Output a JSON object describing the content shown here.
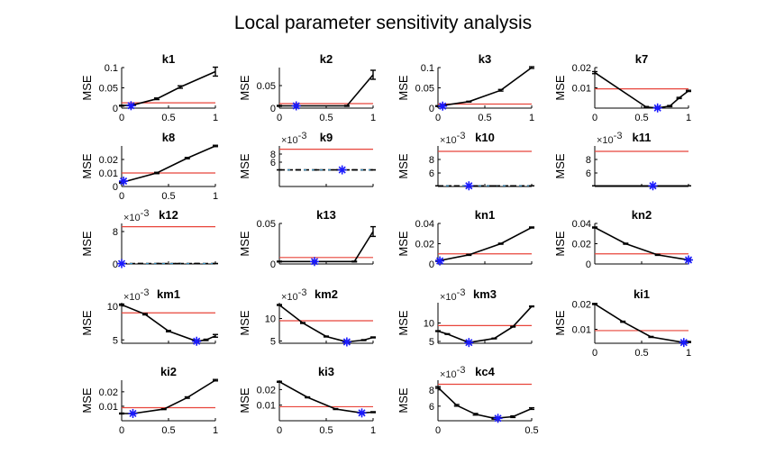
{
  "figure_title": "Local parameter sensitivity analysis",
  "colors": {
    "curve": "#000000",
    "threshold": "#e8443a",
    "optimum": "#1a1aff",
    "axis": "#000000",
    "dashed": "#3aa0d8"
  },
  "chart_data": [
    {
      "type": "line",
      "title": "k1",
      "ylabel": "MSE",
      "xlim": [
        0,
        1
      ],
      "ylim": [
        0,
        0.1
      ],
      "xticks": [
        "0",
        "0.5",
        "1"
      ],
      "yticks": [
        {
          "v": 0,
          "t": "0"
        },
        {
          "v": 0.05,
          "t": "0.05"
        },
        {
          "v": 0.1,
          "t": "0.1"
        }
      ],
      "x": [
        0,
        0.125,
        0.375,
        0.625,
        1
      ],
      "y": [
        0.006,
        0.008,
        0.023,
        0.052,
        0.09
      ],
      "err": [
        0.001,
        0.001,
        0.002,
        0.003,
        0.011
      ],
      "threshold": 0.013,
      "optimum": {
        "x": 0.1,
        "y": 0.006
      }
    },
    {
      "type": "line",
      "title": "k2",
      "ylabel": "MSE",
      "xlim": [
        0,
        1
      ],
      "ylim": [
        0,
        0.09
      ],
      "xticks": [
        "0",
        "0.5",
        "1"
      ],
      "yticks": [
        {
          "v": 0,
          "t": "0"
        },
        {
          "v": 0.05,
          "t": "0.05"
        }
      ],
      "x": [
        0,
        0.18,
        0.72,
        1
      ],
      "y": [
        0.005,
        0.005,
        0.005,
        0.074
      ],
      "err": [
        0.001,
        0.001,
        0.001,
        0.01
      ],
      "threshold": 0.01,
      "optimum": {
        "x": 0.18,
        "y": 0.005
      }
    },
    {
      "type": "line",
      "title": "k3",
      "ylabel": "MSE",
      "xlim": [
        0,
        1
      ],
      "ylim": [
        0,
        0.1
      ],
      "xticks": [
        "0",
        "0.5",
        "1"
      ],
      "yticks": [
        {
          "v": 0,
          "t": "0"
        },
        {
          "v": 0.05,
          "t": "0.05"
        },
        {
          "v": 0.1,
          "t": "0.1"
        }
      ],
      "x": [
        0,
        0.33,
        0.67,
        1
      ],
      "y": [
        0.005,
        0.016,
        0.044,
        0.1
      ],
      "err": [
        0.001,
        0.001,
        0.002,
        0.002
      ],
      "threshold": 0.01,
      "optimum": {
        "x": 0.05,
        "y": 0.005
      }
    },
    {
      "type": "line",
      "title": "k7",
      "ylabel": "MSE",
      "xlim": [
        0,
        1
      ],
      "ylim": [
        0,
        0.02
      ],
      "xticks": [
        "0",
        "0.5",
        "1"
      ],
      "yticks": [
        {
          "v": 0.01,
          "t": "0.01"
        },
        {
          "v": 0.02,
          "t": "0.02"
        }
      ],
      "x": [
        0,
        0.55,
        0.67,
        0.8,
        0.9,
        1
      ],
      "y": [
        0.0175,
        0.0005,
        0.0001,
        0.001,
        0.005,
        0.0085
      ],
      "err": [
        0.0005,
        0.0003,
        0.0003,
        0.0003,
        0.0003,
        0.0003
      ],
      "threshold": 0.0095,
      "optimum": {
        "x": 0.67,
        "y": 0.0001
      }
    },
    {
      "type": "line",
      "title": "k8",
      "ylabel": "MSE",
      "xlim": [
        0,
        1
      ],
      "ylim": [
        0,
        0.03
      ],
      "xticks": [
        "0",
        "0.5",
        "1"
      ],
      "yticks": [
        {
          "v": 0,
          "t": "0"
        },
        {
          "v": 0.01,
          "t": "0.01"
        },
        {
          "v": 0.02,
          "t": "0.02"
        }
      ],
      "x": [
        0,
        0.375,
        0.7,
        1
      ],
      "y": [
        0.003,
        0.01,
        0.021,
        0.03
      ],
      "err": [
        0.0005,
        0.0005,
        0.0005,
        0.0005
      ],
      "threshold": 0.01,
      "optimum": {
        "x": 0.02,
        "y": 0.004
      }
    },
    {
      "type": "line",
      "title": "k9",
      "ylabel": "MSE",
      "multiplier": "×10<tspan dy=\"-5\">-3</tspan>",
      "xlim": [
        0,
        1
      ],
      "ylim": [
        0,
        0.01
      ],
      "xticks": [],
      "yticks": [
        {
          "v": 0.006,
          "t": "6"
        },
        {
          "v": 0.008,
          "t": "8"
        }
      ],
      "x": [
        0,
        0.2,
        0.4,
        0.6,
        0.8,
        1
      ],
      "y": [
        0.0041,
        0.0041,
        0.0041,
        0.0041,
        0.0041,
        0.0041
      ],
      "err": [
        0,
        0,
        0,
        0,
        0,
        0
      ],
      "threshold": 0.0092,
      "dashed": true,
      "optimum": {
        "x": 0.67,
        "y": 0.0041
      },
      "ylim_low": 0.004
    },
    {
      "type": "line",
      "title": "k10",
      "ylabel": "MSE",
      "multiplier": "×10<tspan dy=\"-5\">-3</tspan>",
      "xlim": [
        0,
        1
      ],
      "ylim": [
        0.004,
        0.01
      ],
      "xticks": [],
      "yticks": [
        {
          "v": 0.006,
          "t": "6"
        },
        {
          "v": 0.008,
          "t": "8"
        }
      ],
      "x": [
        0,
        0.2,
        0.4,
        0.6,
        0.8,
        1
      ],
      "y": [
        0.0041,
        0.0041,
        0.0041,
        0.0041,
        0.0041,
        0.0041
      ],
      "err": [
        0,
        0,
        0,
        0,
        0,
        0
      ],
      "threshold": 0.0092,
      "dashed": true,
      "optimum": {
        "x": 0.33,
        "y": 0.0041
      }
    },
    {
      "type": "line",
      "title": "k11",
      "ylabel": "MSE",
      "multiplier": "×10<tspan dy=\"-5\">-3</tspan>",
      "xlim": [
        0,
        1
      ],
      "ylim": [
        0.004,
        0.01
      ],
      "xticks": [],
      "yticks": [
        {
          "v": 0.006,
          "t": "6"
        },
        {
          "v": 0.008,
          "t": "8"
        }
      ],
      "x": [
        0,
        0.2,
        0.4,
        0.6,
        0.8,
        1
      ],
      "y": [
        0.0041,
        0.0041,
        0.0041,
        0.0041,
        0.0041,
        0.0041
      ],
      "err": [
        0,
        0,
        0,
        0,
        0,
        0
      ],
      "threshold": 0.0092,
      "optimum": {
        "x": 0.62,
        "y": 0.0041
      }
    },
    {
      "type": "line",
      "title": "k12",
      "ylabel": "MSE",
      "multiplier": "×10<tspan dy=\"-5\">-3</tspan>",
      "xlim": [
        0,
        1
      ],
      "ylim": [
        0,
        0.01
      ],
      "xticks": [],
      "yticks": [
        {
          "v": 0,
          "t": "0"
        },
        {
          "v": 0.008,
          "t": "8"
        }
      ],
      "x": [
        0,
        0.2,
        0.4,
        0.6,
        0.8,
        1
      ],
      "y": [
        0.0001,
        0.0001,
        0.0001,
        0.0001,
        0.0001,
        0.0001
      ],
      "err": [
        0,
        0,
        0,
        0,
        0,
        0
      ],
      "threshold": 0.0092,
      "dashed": true,
      "optimum": {
        "x": 0.0,
        "y": 0.0001
      }
    },
    {
      "type": "line",
      "title": "k13",
      "ylabel": "MSE",
      "xlim": [
        0,
        1
      ],
      "ylim": [
        0,
        0.05
      ],
      "xticks": [],
      "yticks": [
        {
          "v": 0,
          "t": "0"
        },
        {
          "v": 0.05,
          "t": "0.05"
        }
      ],
      "x": [
        0,
        0.375,
        0.8,
        1
      ],
      "y": [
        0.003,
        0.003,
        0.003,
        0.04
      ],
      "err": [
        0.0005,
        0.0005,
        0.0005,
        0.006
      ],
      "threshold": 0.008,
      "optimum": {
        "x": 0.375,
        "y": 0.003
      }
    },
    {
      "type": "line",
      "title": "kn1",
      "ylabel": "MSE",
      "xlim": [
        0,
        1
      ],
      "ylim": [
        0,
        0.04
      ],
      "xticks": [],
      "yticks": [
        {
          "v": 0,
          "t": "0"
        },
        {
          "v": 0.02,
          "t": "0.02"
        },
        {
          "v": 0.04,
          "t": "0.04"
        }
      ],
      "x": [
        0,
        0.33,
        0.67,
        1
      ],
      "y": [
        0.003,
        0.009,
        0.02,
        0.036
      ],
      "err": [
        0.0005,
        0.0005,
        0.0005,
        0.0005
      ],
      "threshold": 0.01,
      "optimum": {
        "x": 0.02,
        "y": 0.003
      }
    },
    {
      "type": "line",
      "title": "kn2",
      "ylabel": "MSE",
      "xlim": [
        0,
        1
      ],
      "ylim": [
        0,
        0.04
      ],
      "xticks": [],
      "yticks": [
        {
          "v": 0,
          "t": "0"
        },
        {
          "v": 0.02,
          "t": "0.02"
        },
        {
          "v": 0.04,
          "t": "0.04"
        }
      ],
      "x": [
        0,
        0.33,
        0.67,
        1
      ],
      "y": [
        0.036,
        0.02,
        0.009,
        0.004
      ],
      "err": [
        0.0005,
        0.0005,
        0.0005,
        0.0005
      ],
      "threshold": 0.01,
      "optimum": {
        "x": 1.0,
        "y": 0.004
      }
    },
    {
      "type": "line",
      "title": "km1",
      "ylabel": "MSE",
      "multiplier": "×10<tspan dy=\"-5\">-3</tspan>",
      "xlim": [
        0,
        1
      ],
      "ylim": [
        0.0045,
        0.0105
      ],
      "xticks": [],
      "yticks": [
        {
          "v": 0.005,
          "t": "5"
        },
        {
          "v": 0.01,
          "t": "10"
        }
      ],
      "x": [
        0,
        0.25,
        0.5,
        0.8,
        0.9,
        1
      ],
      "y": [
        0.0102,
        0.0088,
        0.0063,
        0.0048,
        0.005,
        0.0056
      ],
      "err": [
        0.0001,
        0.0001,
        0.0001,
        0.0001,
        0.0001,
        0.0002
      ],
      "threshold": 0.009,
      "optimum": {
        "x": 0.8,
        "y": 0.0048
      }
    },
    {
      "type": "line",
      "title": "km2",
      "ylabel": "MSE",
      "multiplier": "×10<tspan dy=\"-5\">-3</tspan>",
      "xlim": [
        0,
        1
      ],
      "ylim": [
        0.0045,
        0.0135
      ],
      "xticks": [],
      "yticks": [
        {
          "v": 0.005,
          "t": "5"
        },
        {
          "v": 0.01,
          "t": "10"
        }
      ],
      "x": [
        0,
        0.25,
        0.5,
        0.72,
        0.9,
        1
      ],
      "y": [
        0.013,
        0.009,
        0.006,
        0.0048,
        0.0052,
        0.0058
      ],
      "err": [
        0.0001,
        0.0001,
        0.0001,
        0.0001,
        0.0001,
        0.0001
      ],
      "threshold": 0.0095,
      "optimum": {
        "x": 0.72,
        "y": 0.0048
      }
    },
    {
      "type": "line",
      "title": "km3",
      "ylabel": "MSE",
      "multiplier": "×10<tspan dy=\"-5\">-3</tspan>",
      "xlim": [
        0,
        1
      ],
      "ylim": [
        0.0045,
        0.0155
      ],
      "xticks": [],
      "yticks": [
        {
          "v": 0.005,
          "t": "5"
        },
        {
          "v": 0.01,
          "t": "10"
        }
      ],
      "x": [
        0,
        0.1,
        0.33,
        0.6,
        0.8,
        1
      ],
      "y": [
        0.0078,
        0.007,
        0.0047,
        0.0058,
        0.009,
        0.0145
      ],
      "err": [
        0.0001,
        0.0001,
        0.0001,
        0.0001,
        0.0001,
        0.0001
      ],
      "threshold": 0.0093,
      "optimum": {
        "x": 0.33,
        "y": 0.0047
      }
    },
    {
      "type": "line",
      "title": "ki1",
      "ylabel": "MSE",
      "xlim": [
        0,
        1
      ],
      "ylim": [
        0.0045,
        0.0205
      ],
      "xticks": [
        "0",
        "0.5",
        "1"
      ],
      "yticks": [
        {
          "v": 0.01,
          "t": "0.01"
        },
        {
          "v": 0.02,
          "t": "0.02"
        }
      ],
      "x": [
        0,
        0.3,
        0.6,
        0.95,
        1
      ],
      "y": [
        0.02,
        0.013,
        0.007,
        0.0048,
        0.005
      ],
      "err": [
        0.0002,
        0.0002,
        0.0002,
        0.0002,
        0.0002
      ],
      "threshold": 0.0095,
      "optimum": {
        "x": 0.95,
        "y": 0.0048
      }
    },
    {
      "type": "line",
      "title": "ki2",
      "ylabel": "MSE",
      "xlim": [
        0,
        1
      ],
      "ylim": [
        0,
        0.028
      ],
      "xticks": [
        "0",
        "0.5",
        "1"
      ],
      "yticks": [
        {
          "v": 0.01,
          "t": "0.01"
        },
        {
          "v": 0.02,
          "t": "0.02"
        }
      ],
      "x": [
        0,
        0.12,
        0.45,
        0.7,
        1
      ],
      "y": [
        0.005,
        0.005,
        0.008,
        0.016,
        0.028
      ],
      "err": [
        0.0003,
        0.0003,
        0.0003,
        0.0005,
        0.0005
      ],
      "threshold": 0.009,
      "optimum": {
        "x": 0.12,
        "y": 0.005
      }
    },
    {
      "type": "line",
      "title": "ki3",
      "ylabel": "MSE",
      "xlim": [
        0,
        1
      ],
      "ylim": [
        0,
        0.026
      ],
      "xticks": [
        "0",
        "0.5",
        "1"
      ],
      "yticks": [
        {
          "v": 0.01,
          "t": "0.01"
        },
        {
          "v": 0.02,
          "t": "0.02"
        }
      ],
      "x": [
        0,
        0.3,
        0.6,
        0.88,
        1
      ],
      "y": [
        0.025,
        0.015,
        0.0075,
        0.005,
        0.0055
      ],
      "err": [
        0.0003,
        0.0003,
        0.0003,
        0.0003,
        0.0003
      ],
      "threshold": 0.009,
      "optimum": {
        "x": 0.88,
        "y": 0.005
      }
    },
    {
      "type": "line",
      "title": "kc4",
      "ylabel": "MSE",
      "multiplier": "×10<tspan dy=\"-5\">-3</tspan>",
      "xlim": [
        0,
        0.5
      ],
      "ylim": [
        0.0042,
        0.0092
      ],
      "xticks": [
        "0",
        "0.5"
      ],
      "yticks": [
        {
          "v": 0.006,
          "t": "6"
        },
        {
          "v": 0.008,
          "t": "8"
        }
      ],
      "x": [
        0,
        0.1,
        0.2,
        0.3,
        0.4,
        0.5
      ],
      "y": [
        0.0083,
        0.0061,
        0.005,
        0.0045,
        0.0047,
        0.0057
      ],
      "err": [
        0.0001,
        0.0001,
        0.0001,
        0.0001,
        0.0001,
        0.0001
      ],
      "threshold": 0.0087,
      "optimum": {
        "x": 0.32,
        "y": 0.0045
      }
    }
  ]
}
